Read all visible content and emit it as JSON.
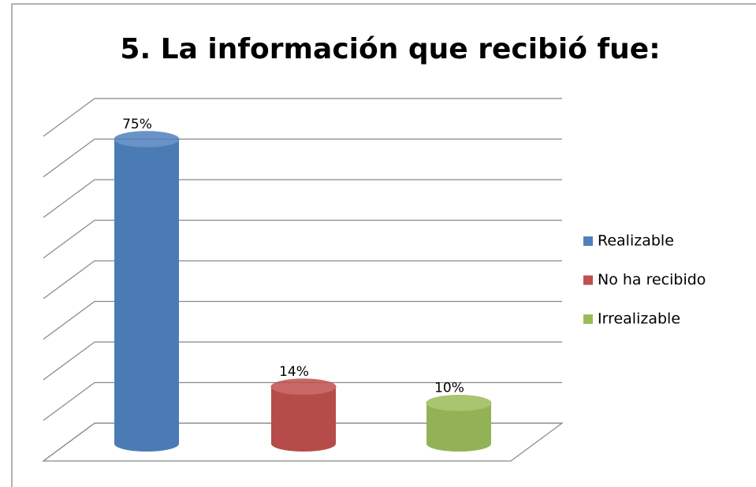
{
  "chart_data": {
    "type": "bar3d",
    "title": "5. La información que recibió fue:",
    "categories": [
      "Realizable",
      "No ha recibido",
      "Irrealizable"
    ],
    "values": [
      75,
      14,
      10
    ],
    "value_labels": [
      "75%",
      "14%",
      "10%"
    ],
    "colors": [
      "#4f81bd",
      "#c0504d",
      "#9bbb59"
    ],
    "ylim": [
      0,
      80
    ],
    "yticks": [
      0,
      10,
      20,
      30,
      40,
      50,
      60,
      70,
      80
    ],
    "grid": true,
    "legend": "right"
  }
}
